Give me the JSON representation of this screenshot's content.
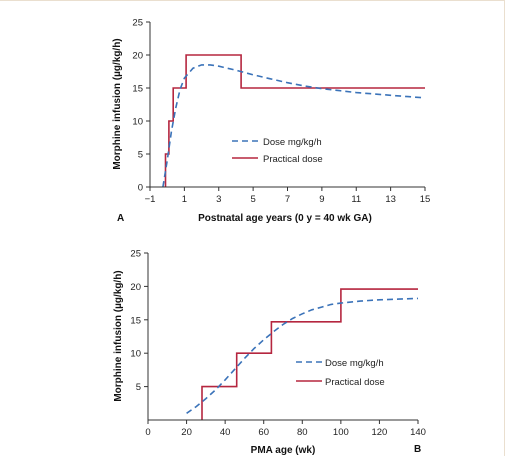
{
  "colors": {
    "dose": "#3b73b9",
    "practical": "#b5263f",
    "axis": "#333333"
  },
  "chart_data": [
    {
      "panel_label": "A",
      "type": "line",
      "xlabel": "Postnatal age years (0 y = 40 wk GA)",
      "ylabel": "Morphine infusion (µg/kg/h)",
      "xlim": [
        -1,
        15
      ],
      "ylim": [
        0,
        25
      ],
      "xticks": [
        -1,
        1,
        3,
        5,
        7,
        9,
        11,
        13,
        15
      ],
      "yticks": [
        0,
        5,
        10,
        15,
        20,
        25
      ],
      "legend_position": "center-right",
      "series": [
        {
          "name": "Dose mg/kg/h",
          "style": "dashed",
          "x": [
            -0.25,
            0.0,
            0.25,
            0.5,
            0.75,
            1.0,
            1.5,
            2.0,
            2.5,
            3.0,
            3.5,
            4.0,
            5.0,
            6.0,
            7.0,
            8.0,
            9.0,
            10.0,
            11.0,
            12.0,
            13.0,
            14.0,
            15.0
          ],
          "y": [
            0.0,
            4.0,
            8.5,
            12.0,
            14.8,
            16.5,
            18.0,
            18.5,
            18.5,
            18.3,
            18.0,
            17.7,
            17.0,
            16.4,
            15.8,
            15.3,
            14.9,
            14.6,
            14.3,
            14.1,
            13.9,
            13.7,
            13.5
          ]
        },
        {
          "name": "Practical dose",
          "style": "step",
          "x": [
            -0.1,
            -0.1,
            0.1,
            0.1,
            0.35,
            0.35,
            0.55,
            0.55,
            1.1,
            1.1,
            4.3,
            4.3,
            15.0
          ],
          "y": [
            0,
            5,
            5,
            10,
            10,
            15,
            15,
            15,
            15,
            20,
            20,
            15,
            15
          ]
        }
      ]
    },
    {
      "panel_label": "B",
      "type": "line",
      "xlabel": "PMA age (wk)",
      "ylabel": "Morphine infusion (µg/kg/h)",
      "xlim": [
        0,
        140
      ],
      "ylim": [
        0,
        25
      ],
      "xticks": [
        0,
        20,
        40,
        60,
        80,
        100,
        120,
        140
      ],
      "yticks": [
        5,
        10,
        15,
        20,
        25
      ],
      "legend_position": "center-right",
      "series": [
        {
          "name": "Dose mg/kg/h",
          "style": "dashed",
          "x": [
            20,
            25,
            30,
            35,
            40,
            45,
            50,
            55,
            60,
            65,
            70,
            75,
            80,
            85,
            90,
            95,
            100,
            110,
            120,
            130,
            140
          ],
          "y": [
            1.0,
            2.0,
            3.2,
            4.5,
            6.0,
            7.6,
            9.2,
            10.7,
            12.0,
            13.2,
            14.3,
            15.2,
            15.9,
            16.5,
            16.9,
            17.3,
            17.5,
            17.8,
            18.0,
            18.1,
            18.2
          ]
        },
        {
          "name": "Practical dose",
          "style": "step",
          "x": [
            28,
            28,
            46,
            46,
            64,
            64,
            100,
            100,
            140
          ],
          "y": [
            0,
            5,
            5,
            10,
            10,
            14.7,
            14.7,
            19.6,
            19.6
          ]
        }
      ]
    }
  ]
}
